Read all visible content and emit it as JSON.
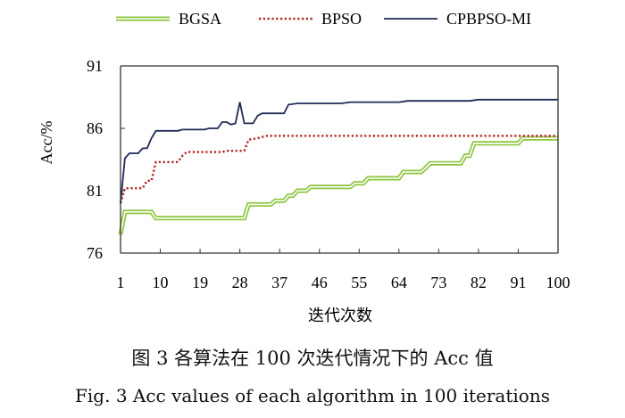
{
  "chart_data": {
    "type": "line",
    "xlabel": "迭代次数",
    "ylabel": "Acc/%",
    "xlim": [
      1,
      100
    ],
    "ylim": [
      76,
      91
    ],
    "xticks": [
      1,
      10,
      19,
      28,
      37,
      46,
      55,
      64,
      73,
      82,
      91,
      100
    ],
    "yticks": [
      76,
      81,
      86,
      91
    ],
    "grid": false,
    "legend_position": "top",
    "series": [
      {
        "name": "BGSA",
        "color": "#8cc63f",
        "style": "double",
        "points": [
          [
            1,
            77.5
          ],
          [
            2,
            79.3
          ],
          [
            8,
            79.3
          ],
          [
            9,
            78.8
          ],
          [
            29,
            78.8
          ],
          [
            30,
            79.9
          ],
          [
            35,
            79.9
          ],
          [
            36,
            80.2
          ],
          [
            38,
            80.2
          ],
          [
            39,
            80.6
          ],
          [
            40,
            80.6
          ],
          [
            41,
            81.0
          ],
          [
            43,
            81.0
          ],
          [
            44,
            81.3
          ],
          [
            53,
            81.3
          ],
          [
            54,
            81.6
          ],
          [
            56,
            81.6
          ],
          [
            57,
            82.0
          ],
          [
            64,
            82.0
          ],
          [
            65,
            82.5
          ],
          [
            69,
            82.5
          ],
          [
            70,
            82.8
          ],
          [
            71,
            83.2
          ],
          [
            78,
            83.2
          ],
          [
            79,
            83.8
          ],
          [
            80,
            83.8
          ],
          [
            81,
            84.8
          ],
          [
            91,
            84.8
          ],
          [
            92,
            85.2
          ],
          [
            100,
            85.2
          ]
        ]
      },
      {
        "name": "BPSO",
        "color": "#b22222",
        "style": "dotted",
        "points": [
          [
            1,
            80.0
          ],
          [
            2,
            81.2
          ],
          [
            6,
            81.2
          ],
          [
            7,
            81.8
          ],
          [
            8,
            81.8
          ],
          [
            9,
            83.3
          ],
          [
            14,
            83.3
          ],
          [
            15,
            83.8
          ],
          [
            16,
            84.1
          ],
          [
            24,
            84.1
          ],
          [
            25,
            84.2
          ],
          [
            29,
            84.2
          ],
          [
            30,
            85.1
          ],
          [
            32,
            85.2
          ],
          [
            34,
            85.4
          ],
          [
            100,
            85.4
          ]
        ]
      },
      {
        "name": "CPBPSO-MI",
        "color": "#1f2a5a",
        "style": "solid",
        "points": [
          [
            1,
            80.0
          ],
          [
            2,
            83.6
          ],
          [
            3,
            84.0
          ],
          [
            5,
            84.0
          ],
          [
            6,
            84.4
          ],
          [
            7,
            84.4
          ],
          [
            8,
            85.2
          ],
          [
            9,
            85.8
          ],
          [
            14,
            85.8
          ],
          [
            15,
            85.9
          ],
          [
            20,
            85.9
          ],
          [
            21,
            86.0
          ],
          [
            23,
            86.0
          ],
          [
            24,
            86.5
          ],
          [
            25,
            86.5
          ],
          [
            26,
            86.3
          ],
          [
            27,
            86.4
          ],
          [
            28,
            88.1
          ],
          [
            29,
            86.4
          ],
          [
            31,
            86.4
          ],
          [
            32,
            87.0
          ],
          [
            33,
            87.2
          ],
          [
            38,
            87.2
          ],
          [
            39,
            87.9
          ],
          [
            41,
            88.0
          ],
          [
            51,
            88.0
          ],
          [
            53,
            88.1
          ],
          [
            64,
            88.1
          ],
          [
            66,
            88.2
          ],
          [
            80,
            88.2
          ],
          [
            82,
            88.3
          ],
          [
            100,
            88.3
          ]
        ]
      }
    ]
  },
  "captions": {
    "chinese": "图 3 各算法在 100 次迭代情况下的 Acc 值",
    "english": "Fig. 3 Acc values of each algorithm in 100 iterations"
  }
}
